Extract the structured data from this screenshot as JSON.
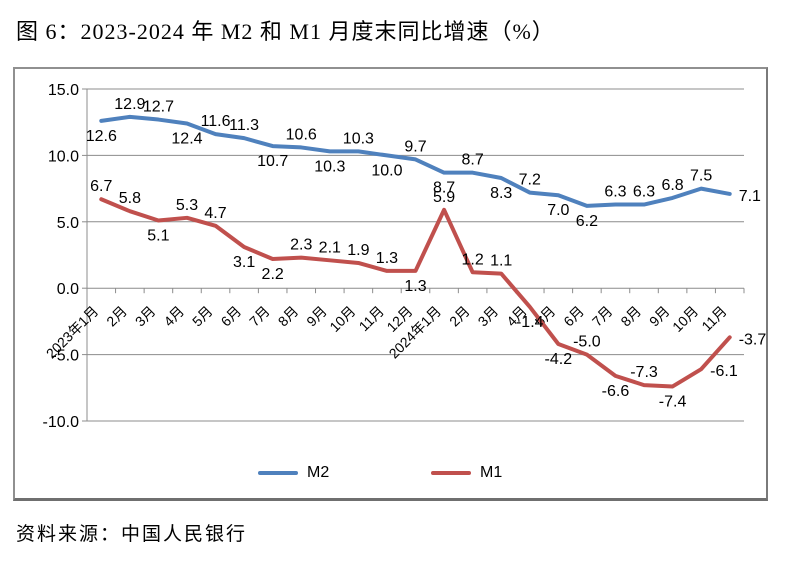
{
  "title": "图 6：2023-2024 年 M2 和 M1 月度末同比增速（%）",
  "source": "资料来源：中国人民银行",
  "chart_data": {
    "type": "line",
    "title": "2023-2024 年 M2 和 M1 月度末同比增速（%）",
    "categories": [
      "2023年1月",
      "2月",
      "3月",
      "4月",
      "5月",
      "6月",
      "7月",
      "8月",
      "9月",
      "10月",
      "11月",
      "12月",
      "2024年1月",
      "2月",
      "3月",
      "4月",
      "5月",
      "6月",
      "7月",
      "8月",
      "9月",
      "10月",
      "11月"
    ],
    "series": [
      {
        "name": "M2",
        "color": "#4F81BD",
        "values": [
          12.6,
          12.9,
          12.7,
          12.4,
          11.6,
          11.3,
          10.7,
          10.6,
          10.3,
          10.3,
          10.0,
          9.7,
          8.7,
          8.7,
          8.3,
          7.2,
          7.0,
          6.2,
          6.3,
          6.3,
          6.8,
          7.5,
          7.1
        ]
      },
      {
        "name": "M1",
        "color": "#C0504D",
        "values": [
          6.7,
          5.8,
          5.1,
          5.3,
          4.7,
          3.1,
          2.2,
          2.3,
          2.1,
          1.9,
          1.3,
          1.3,
          5.9,
          1.2,
          1.1,
          -1.4,
          -4.2,
          -5.0,
          -6.6,
          -7.3,
          -7.4,
          -6.1,
          -3.7
        ]
      }
    ],
    "ylim": [
      -10,
      15
    ],
    "yticks": [
      15.0,
      10.0,
      5.0,
      0.0,
      -5.0,
      -10.0
    ],
    "ytick_labels": [
      "15.0",
      "10.0",
      "5.0",
      "0.0",
      "-5.0",
      "-10.0"
    ],
    "grid": true,
    "data_labels": true,
    "legend_position": "bottom",
    "axis_color": "#8C8C8C",
    "label_color": "#000000"
  }
}
